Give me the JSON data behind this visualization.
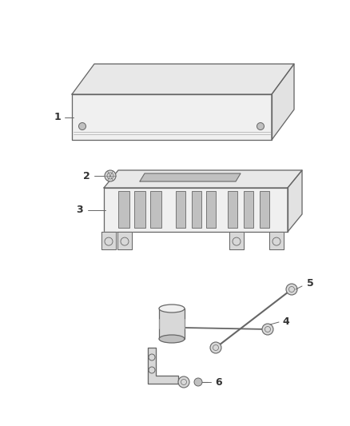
{
  "bg_color": "#ffffff",
  "line_color": "#666666",
  "line_color_dark": "#444444",
  "label_color": "#333333",
  "figsize": [
    4.38,
    5.33
  ],
  "dpi": 100,
  "fill_light": "#f0f0f0",
  "fill_mid": "#d8d8d8",
  "fill_dark": "#c0c0c0",
  "fill_side": "#e2e2e2",
  "fill_top": "#e8e8e8"
}
